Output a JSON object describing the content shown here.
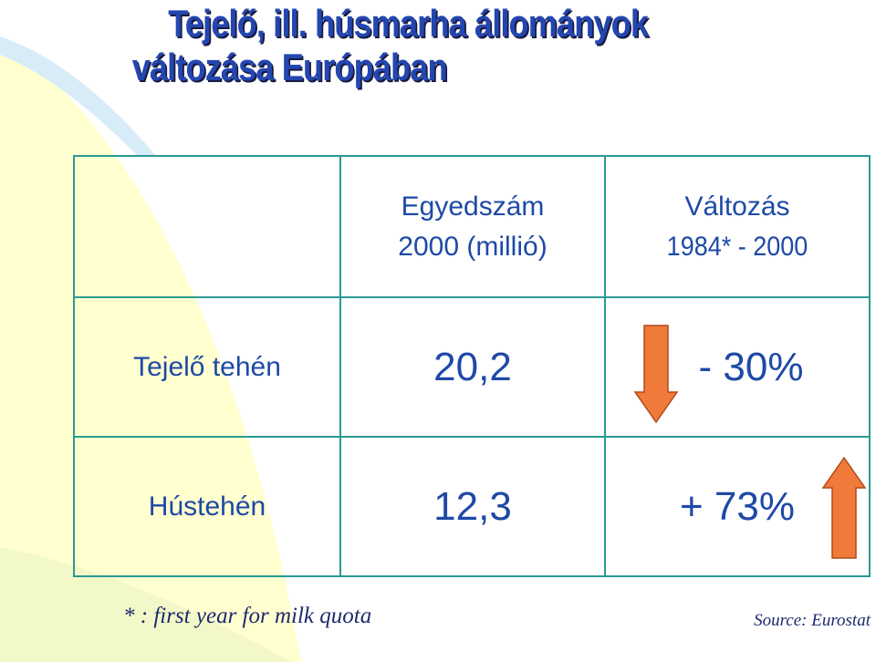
{
  "title": [
    "Tejelő, ill. húsmarha állományok",
    "változása Európában"
  ],
  "table": {
    "header": [
      [
        "Egyedszám",
        "2000 (millió)"
      ],
      [
        "Változás",
        "1984* - 2000"
      ]
    ],
    "rows": [
      [
        "Tejelő tehén",
        "20,2",
        "- 30%"
      ],
      [
        "Hústehén",
        "12,3",
        "+ 73%"
      ]
    ]
  },
  "footnote": "* : first year for milk quota",
  "source": "Source: Eurostat"
}
